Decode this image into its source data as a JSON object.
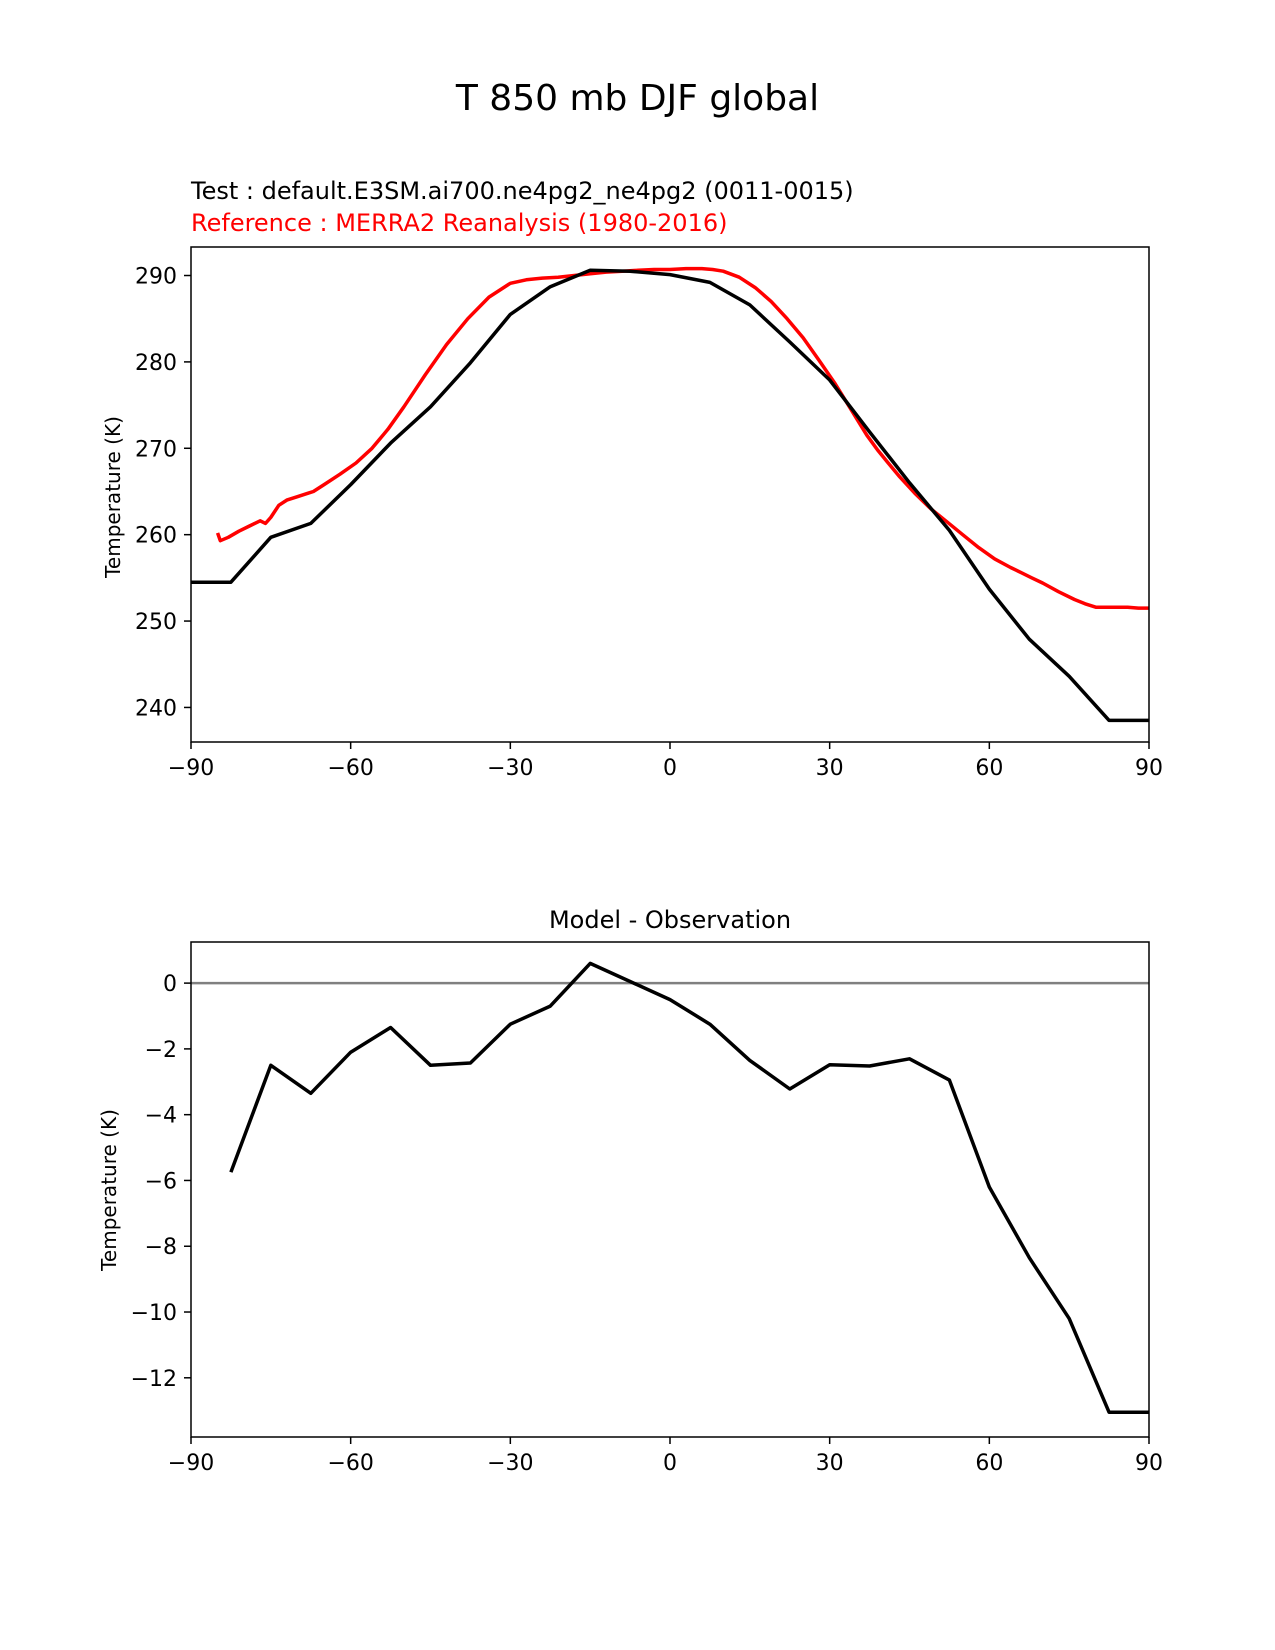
{
  "figure_title": "T 850 mb DJF global",
  "chart_data": [
    {
      "type": "line",
      "title_test": "Test : default.E3SM.ai700.ne4pg2_ne4pg2 (0011-0015)",
      "title_ref": "Reference : MERRA2 Reanalysis (1980-2016)",
      "xlabel": "",
      "ylabel": "Temperature (K)",
      "xlim": [
        -90,
        90
      ],
      "ylim": [
        236,
        293.3
      ],
      "xticks": [
        -90,
        -60,
        -30,
        0,
        30,
        60,
        90
      ],
      "xtick_labels": [
        "−90",
        "−60",
        "−30",
        "0",
        "30",
        "60",
        "90"
      ],
      "yticks": [
        240,
        250,
        260,
        270,
        280,
        290
      ],
      "ytick_labels": [
        "240",
        "250",
        "260",
        "270",
        "280",
        "290"
      ],
      "series": [
        {
          "name": "Reference",
          "color": "#ff0000",
          "x": [
            -85,
            -84.5,
            -83,
            -81,
            -79,
            -77,
            -76,
            -75,
            -73.5,
            -72,
            -70,
            -68,
            -67,
            -65,
            -62,
            -59,
            -56,
            -53,
            -50,
            -46,
            -42,
            -38,
            -34,
            -30,
            -27,
            -24,
            -21,
            -18,
            -15,
            -12,
            -9,
            -6,
            -3,
            0,
            3,
            6,
            8,
            10,
            13,
            16,
            19,
            22,
            25,
            28,
            31,
            34,
            37,
            39,
            41,
            43,
            46,
            49,
            52,
            55,
            58,
            61,
            64,
            66,
            68,
            70,
            73,
            76,
            78,
            80,
            82,
            84,
            86,
            88,
            90
          ],
          "y": [
            260.2,
            259.3,
            259.7,
            260.4,
            261.0,
            261.6,
            261.3,
            262.0,
            263.4,
            264.0,
            264.4,
            264.8,
            265.0,
            265.8,
            267.0,
            268.3,
            270.0,
            272.2,
            274.8,
            278.5,
            282.0,
            285.0,
            287.5,
            289.1,
            289.5,
            289.7,
            289.8,
            290.0,
            290.2,
            290.4,
            290.5,
            290.6,
            290.7,
            290.7,
            290.8,
            290.8,
            290.7,
            290.5,
            289.8,
            288.6,
            287.0,
            285.0,
            282.8,
            280.2,
            277.5,
            274.5,
            271.5,
            269.8,
            268.3,
            266.8,
            264.8,
            263.0,
            261.5,
            260.0,
            258.5,
            257.2,
            256.2,
            255.6,
            255.0,
            254.4,
            253.4,
            252.5,
            252.0,
            251.6,
            251.6,
            251.6,
            251.6,
            251.5,
            251.5
          ]
        },
        {
          "name": "Test",
          "color": "#000000",
          "x": [
            -90,
            -82.5,
            -75,
            -67.5,
            -60,
            -52.5,
            -45,
            -37.5,
            -30,
            -22.5,
            -15,
            -7.5,
            0,
            7.5,
            15,
            22.5,
            30,
            37.5,
            45,
            52.5,
            60,
            67.5,
            75,
            82.5,
            90
          ],
          "y": [
            254.5,
            254.5,
            259.7,
            261.3,
            265.8,
            270.6,
            274.8,
            279.9,
            285.5,
            288.7,
            290.6,
            290.5,
            290.1,
            289.2,
            286.6,
            282.3,
            277.9,
            271.9,
            266.0,
            260.5,
            253.7,
            247.9,
            243.6,
            238.5,
            238.5
          ]
        }
      ]
    },
    {
      "type": "line",
      "title": "Model - Observation",
      "xlabel": "",
      "ylabel": "Temperature (K)",
      "xlim": [
        -90,
        90
      ],
      "ylim": [
        -13.8,
        1.25
      ],
      "xticks": [
        -90,
        -60,
        -30,
        0,
        30,
        60,
        90
      ],
      "xtick_labels": [
        "−90",
        "−60",
        "−30",
        "0",
        "30",
        "60",
        "90"
      ],
      "yticks": [
        -12,
        -10,
        -8,
        -6,
        -4,
        -2,
        0
      ],
      "ytick_labels": [
        "−12",
        "−10",
        "−8",
        "−6",
        "−4",
        "−2",
        "0"
      ],
      "zero_line_color": "#808080",
      "series": [
        {
          "name": "Model - Observation",
          "color": "#000000",
          "x": [
            -82.5,
            -75,
            -67.5,
            -60,
            -52.5,
            -45,
            -37.5,
            -30,
            -22.5,
            -15,
            -7.5,
            0,
            7.5,
            15,
            22.5,
            30,
            37.5,
            45,
            52.5,
            60,
            67.5,
            75,
            82.5,
            90
          ],
          "y": [
            -5.75,
            -2.5,
            -3.35,
            -2.1,
            -1.35,
            -2.5,
            -2.43,
            -1.25,
            -0.7,
            0.6,
            0.05,
            -0.5,
            -1.25,
            -2.35,
            -3.22,
            -2.48,
            -2.52,
            -2.3,
            -2.95,
            -6.2,
            -8.35,
            -10.2,
            -13.05,
            -13.05
          ]
        }
      ]
    }
  ]
}
